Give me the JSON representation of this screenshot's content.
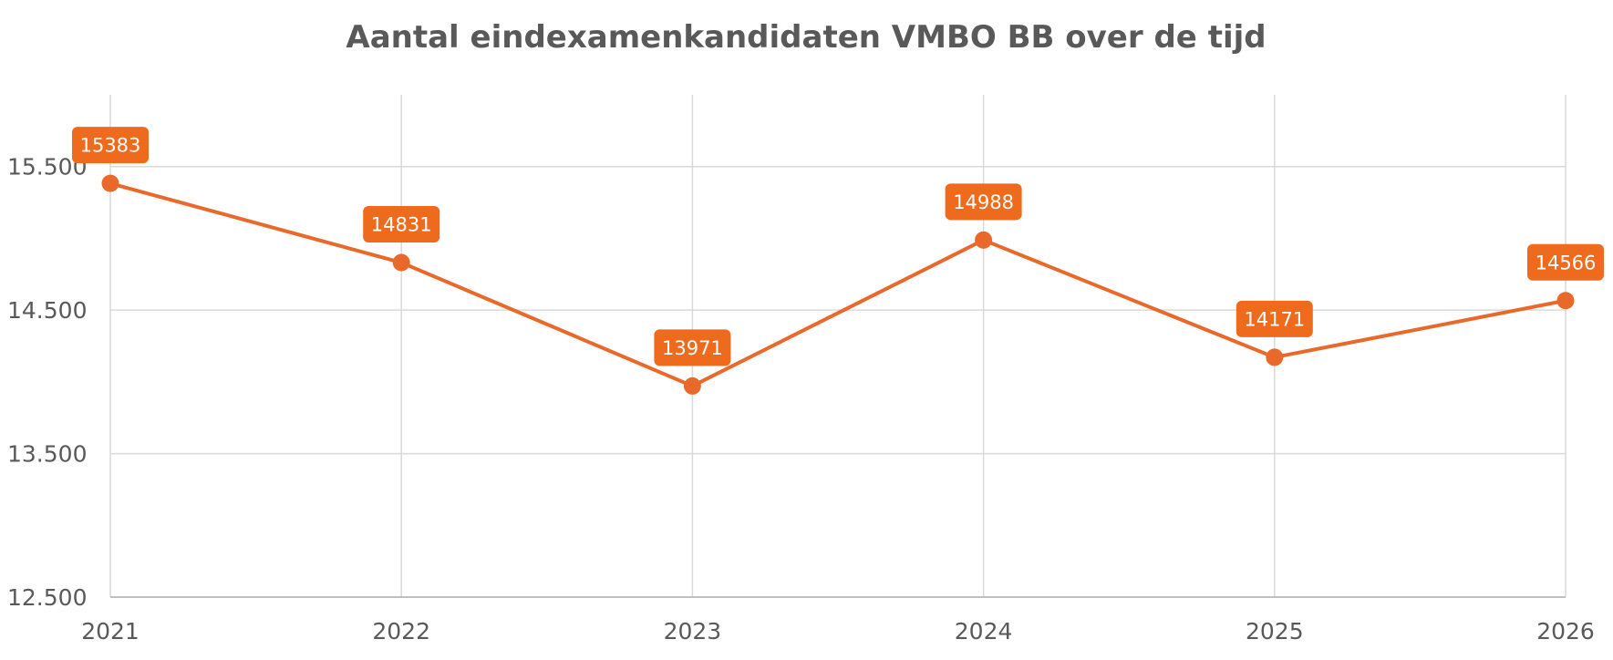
{
  "chart_data": {
    "type": "line",
    "title": "Aantal eindexamenkandidaten VMBO BB over de tijd",
    "xlabel": "",
    "ylabel": "",
    "categories": [
      "2021",
      "2022",
      "2023",
      "2024",
      "2025",
      "2026"
    ],
    "series": [
      {
        "values": [
          15383,
          14831,
          13971,
          14988,
          14171,
          14566
        ],
        "data_labels": [
          "15383",
          "14831",
          "13971",
          "14988",
          "14171",
          "14566"
        ]
      }
    ],
    "ylim": [
      12500,
      16000
    ],
    "y_ticks": [
      12500,
      13500,
      14500,
      15500
    ],
    "y_tick_labels": [
      "12.500",
      "13.500",
      "14.500",
      "15.500"
    ],
    "grid": true,
    "legend": "none",
    "colors": {
      "series": "#E8692A",
      "label_fill": "#EE6A1C",
      "grid": "#D9D9D9",
      "text": "#595959"
    }
  }
}
